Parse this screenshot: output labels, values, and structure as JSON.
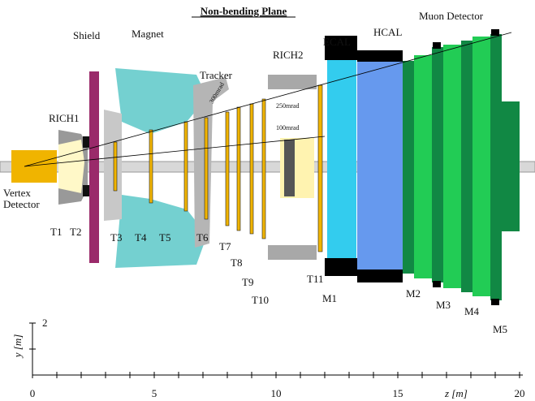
{
  "title": "Non-bending Plane",
  "labels": {
    "shield": "Shield",
    "magnet": "Magnet",
    "tracker": "Tracker",
    "rich2": "RICH2",
    "ecal": "ECAL",
    "hcal": "HCAL",
    "muon": "Muon Detector",
    "rich1": "RICH1",
    "vertex": "Vertex",
    "vertex2": "Detector",
    "mrad_outer": "250mrad",
    "mrad_inner": "100mrad",
    "mrad_tracker": "300mrad"
  },
  "stations": [
    "T1",
    "T2",
    "T3",
    "T4",
    "T5",
    "T6",
    "T7",
    "T8",
    "T9",
    "T10",
    "T11",
    "M1",
    "M2",
    "M3",
    "M4",
    "M5"
  ],
  "axis": {
    "y_label": "y [m]",
    "y_tick": "2",
    "z_label": "z [m]",
    "z_ticks": [
      "0",
      "5",
      "10",
      "15",
      "20"
    ]
  }
}
